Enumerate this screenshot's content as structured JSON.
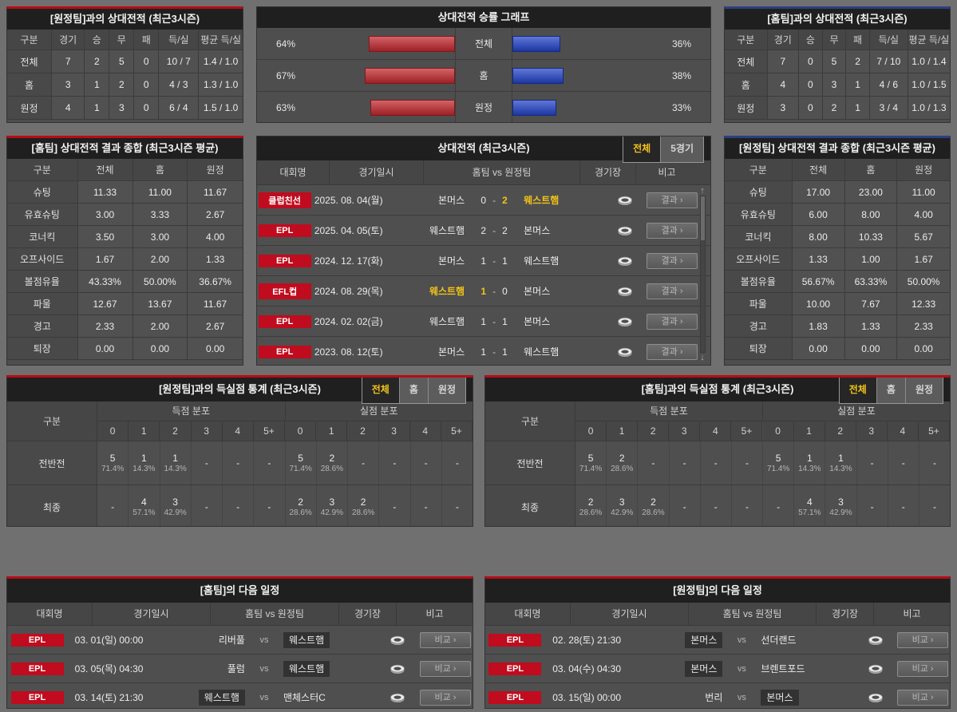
{
  "colors": {
    "accent_red": "#b60d17",
    "accent_blue": "#2a4180",
    "bar_red": "#c0272d",
    "bar_blue": "#2243c7",
    "badge_red": "#c00c1e",
    "highlight_yellow": "#f2c318"
  },
  "ui": {
    "dash": "-",
    "chevron": "›",
    "scroll_up": "↑",
    "scroll_down": "↓"
  },
  "chart_data": {
    "type": "bar",
    "title": "상대전적 승률 그래프",
    "categories": [
      "전체",
      "홈",
      "원정"
    ],
    "series": [
      {
        "name": "홈팀 승률(빨강)",
        "values": [
          64,
          67,
          63
        ]
      },
      {
        "name": "원정팀 승률(파랑)",
        "values": [
          36,
          38,
          33
        ]
      }
    ]
  },
  "panels": {
    "away_record": {
      "title": "[원정팀]과의 상대전적 (최근3시즌)",
      "headers": [
        "구분",
        "경기",
        "승",
        "무",
        "패",
        "득/실",
        "평균 득/실"
      ],
      "rows": [
        {
          "cells": [
            "전체",
            "7",
            "2",
            "5",
            "0",
            "10 / 7",
            "1.4 / 1.0"
          ]
        },
        {
          "cells": [
            "홈",
            "3",
            "1",
            "2",
            "0",
            "4 / 3",
            "1.3 / 1.0"
          ]
        },
        {
          "cells": [
            "원정",
            "4",
            "1",
            "3",
            "0",
            "6 / 4",
            "1.5 / 1.0"
          ]
        }
      ]
    },
    "win_rate_graph": {
      "title": "상대전적 승률 그래프",
      "rows": [
        {
          "label": "전체",
          "left_pct": "64%",
          "left_val": 64,
          "right_pct": "36%",
          "right_val": 36
        },
        {
          "label": "홈",
          "left_pct": "67%",
          "left_val": 67,
          "right_pct": "38%",
          "right_val": 38
        },
        {
          "label": "원정",
          "left_pct": "63%",
          "left_val": 63,
          "right_pct": "33%",
          "right_val": 33
        }
      ]
    },
    "home_record": {
      "title": "[홈팀]과의 상대전적 (최근3시즌)",
      "headers": [
        "구분",
        "경기",
        "승",
        "무",
        "패",
        "득/실",
        "평균 득/실"
      ],
      "rows": [
        {
          "cells": [
            "전체",
            "7",
            "0",
            "5",
            "2",
            "7 / 10",
            "1.0 / 1.4"
          ]
        },
        {
          "cells": [
            "홈",
            "4",
            "0",
            "3",
            "1",
            "4 / 6",
            "1.0 / 1.5"
          ]
        },
        {
          "cells": [
            "원정",
            "3",
            "0",
            "2",
            "1",
            "3 / 4",
            "1.0 / 1.3"
          ]
        }
      ]
    },
    "home_summary": {
      "title": "[홈팀] 상대전적 결과 종합 (최근3시즌 평균)",
      "headers": [
        "구분",
        "전체",
        "홈",
        "원정"
      ],
      "rows": [
        {
          "cells": [
            "슈팅",
            "11.33",
            "11.00",
            "11.67"
          ]
        },
        {
          "cells": [
            "유효슈팅",
            "3.00",
            "3.33",
            "2.67"
          ]
        },
        {
          "cells": [
            "코너킥",
            "3.50",
            "3.00",
            "4.00"
          ]
        },
        {
          "cells": [
            "오프사이드",
            "1.67",
            "2.00",
            "1.33"
          ]
        },
        {
          "cells": [
            "볼점유율",
            "43.33%",
            "50.00%",
            "36.67%"
          ]
        },
        {
          "cells": [
            "파울",
            "12.67",
            "13.67",
            "11.67"
          ]
        },
        {
          "cells": [
            "경고",
            "2.33",
            "2.00",
            "2.67"
          ]
        },
        {
          "cells": [
            "퇴장",
            "0.00",
            "0.00",
            "0.00"
          ]
        }
      ]
    },
    "away_summary": {
      "title": "[원정팀] 상대전적 결과 종합 (최근3시즌 평균)",
      "headers": [
        "구분",
        "전체",
        "홈",
        "원정"
      ],
      "rows": [
        {
          "cells": [
            "슈팅",
            "17.00",
            "23.00",
            "11.00"
          ]
        },
        {
          "cells": [
            "유효슈팅",
            "6.00",
            "8.00",
            "4.00"
          ]
        },
        {
          "cells": [
            "코너킥",
            "8.00",
            "10.33",
            "5.67"
          ]
        },
        {
          "cells": [
            "오프사이드",
            "1.33",
            "1.00",
            "1.67"
          ]
        },
        {
          "cells": [
            "볼점유율",
            "56.67%",
            "63.33%",
            "50.00%"
          ]
        },
        {
          "cells": [
            "파울",
            "10.00",
            "7.67",
            "12.33"
          ]
        },
        {
          "cells": [
            "경고",
            "1.83",
            "1.33",
            "2.33"
          ]
        },
        {
          "cells": [
            "퇴장",
            "0.00",
            "0.00",
            "0.00"
          ]
        }
      ]
    },
    "h2h_matches": {
      "title": "상대전적 (최근3시즌)",
      "tabs": [
        {
          "label": "전체",
          "selected": true
        },
        {
          "label": "5경기",
          "selected": false
        }
      ],
      "headers": {
        "comp": "대회명",
        "date": "경기일시",
        "teams": "홈팀  vs  원정팀",
        "stadium": "경기장",
        "note": "비고"
      },
      "result_label": "결과",
      "rows": [
        {
          "comp": "클럽친선",
          "date": "2025. 08. 04(월)",
          "home": "본머스",
          "hs": "0",
          "as": "2",
          "away": "웨스트햄",
          "home_win": false,
          "away_win": true
        },
        {
          "comp": "EPL",
          "date": "2025. 04. 05(토)",
          "home": "웨스트햄",
          "hs": "2",
          "as": "2",
          "away": "본머스",
          "home_win": false,
          "away_win": false
        },
        {
          "comp": "EPL",
          "date": "2024. 12. 17(화)",
          "home": "본머스",
          "hs": "1",
          "as": "1",
          "away": "웨스트햄",
          "home_win": false,
          "away_win": false
        },
        {
          "comp": "EFL컵",
          "date": "2024. 08. 29(목)",
          "home": "웨스트햄",
          "hs": "1",
          "as": "0",
          "away": "본머스",
          "home_win": true,
          "away_win": false
        },
        {
          "comp": "EPL",
          "date": "2024. 02. 02(금)",
          "home": "웨스트햄",
          "hs": "1",
          "as": "1",
          "away": "본머스",
          "home_win": false,
          "away_win": false
        },
        {
          "comp": "EPL",
          "date": "2023. 08. 12(토)",
          "home": "본머스",
          "hs": "1",
          "as": "1",
          "away": "웨스트햄",
          "home_win": false,
          "away_win": false
        }
      ]
    },
    "dist_subcols": [
      "0",
      "1",
      "2",
      "3",
      "4",
      "5+"
    ],
    "away_dist": {
      "title": "[원정팀]과의 득실점 통계 (최근3시즌)",
      "tabs": [
        {
          "label": "전체",
          "selected": true
        },
        {
          "label": "홈",
          "selected": false
        },
        {
          "label": "원정",
          "selected": false
        }
      ],
      "corner": "구분",
      "group1": "득점 분포",
      "group2": "실점 분포",
      "rows": [
        {
          "label": "전반전",
          "cells": [
            {
              "n": "5",
              "p": "71.4%"
            },
            {
              "n": "1",
              "p": "14.3%"
            },
            {
              "n": "1",
              "p": "14.3%"
            },
            {
              "n": "-",
              "p": ""
            },
            {
              "n": "-",
              "p": ""
            },
            {
              "n": "-",
              "p": ""
            },
            {
              "n": "5",
              "p": "71.4%"
            },
            {
              "n": "2",
              "p": "28.6%"
            },
            {
              "n": "-",
              "p": ""
            },
            {
              "n": "-",
              "p": ""
            },
            {
              "n": "-",
              "p": ""
            },
            {
              "n": "-",
              "p": ""
            }
          ]
        },
        {
          "label": "최종",
          "cells": [
            {
              "n": "-",
              "p": ""
            },
            {
              "n": "4",
              "p": "57.1%"
            },
            {
              "n": "3",
              "p": "42.9%"
            },
            {
              "n": "-",
              "p": ""
            },
            {
              "n": "-",
              "p": ""
            },
            {
              "n": "-",
              "p": ""
            },
            {
              "n": "2",
              "p": "28.6%"
            },
            {
              "n": "3",
              "p": "42.9%"
            },
            {
              "n": "2",
              "p": "28.6%"
            },
            {
              "n": "-",
              "p": ""
            },
            {
              "n": "-",
              "p": ""
            },
            {
              "n": "-",
              "p": ""
            }
          ]
        }
      ]
    },
    "home_dist": {
      "title": "[홈팀]과의 득실점 통계 (최근3시즌)",
      "tabs": [
        {
          "label": "전체",
          "selected": true
        },
        {
          "label": "홈",
          "selected": false
        },
        {
          "label": "원정",
          "selected": false
        }
      ],
      "corner": "구분",
      "group1": "득점 분포",
      "group2": "실점 분포",
      "rows": [
        {
          "label": "전반전",
          "cells": [
            {
              "n": "5",
              "p": "71.4%"
            },
            {
              "n": "2",
              "p": "28.6%"
            },
            {
              "n": "-",
              "p": ""
            },
            {
              "n": "-",
              "p": ""
            },
            {
              "n": "-",
              "p": ""
            },
            {
              "n": "-",
              "p": ""
            },
            {
              "n": "5",
              "p": "71.4%"
            },
            {
              "n": "1",
              "p": "14.3%"
            },
            {
              "n": "1",
              "p": "14.3%"
            },
            {
              "n": "-",
              "p": ""
            },
            {
              "n": "-",
              "p": ""
            },
            {
              "n": "-",
              "p": ""
            }
          ]
        },
        {
          "label": "최종",
          "cells": [
            {
              "n": "2",
              "p": "28.6%"
            },
            {
              "n": "3",
              "p": "42.9%"
            },
            {
              "n": "2",
              "p": "28.6%"
            },
            {
              "n": "-",
              "p": ""
            },
            {
              "n": "-",
              "p": ""
            },
            {
              "n": "-",
              "p": ""
            },
            {
              "n": "-",
              "p": ""
            },
            {
              "n": "4",
              "p": "57.1%"
            },
            {
              "n": "3",
              "p": "42.9%"
            },
            {
              "n": "-",
              "p": ""
            },
            {
              "n": "-",
              "p": ""
            },
            {
              "n": "-",
              "p": ""
            }
          ]
        }
      ]
    },
    "home_schedule": {
      "title": "[홈팀]의 다음 일정",
      "headers": {
        "comp": "대회명",
        "date": "경기일시",
        "teams": "홈팀  vs  원정팀",
        "stadium": "경기장",
        "note": "비고"
      },
      "compare_label": "비교",
      "vs": "vs",
      "rows": [
        {
          "comp": "EPL",
          "date": "03. 01(일) 00:00",
          "home": "리버풀",
          "away": "웨스트햄",
          "home_hl": false,
          "away_hl": true
        },
        {
          "comp": "EPL",
          "date": "03. 05(목) 04:30",
          "home": "풀럼",
          "away": "웨스트햄",
          "home_hl": false,
          "away_hl": true
        },
        {
          "comp": "EPL",
          "date": "03. 14(토) 21:30",
          "home": "웨스트햄",
          "away": "맨체스터C",
          "home_hl": true,
          "away_hl": false
        }
      ]
    },
    "away_schedule": {
      "title": "[원정팀]의 다음 일정",
      "headers": {
        "comp": "대회명",
        "date": "경기일시",
        "teams": "홈팀  vs  원정팀",
        "stadium": "경기장",
        "note": "비고"
      },
      "compare_label": "비교",
      "vs": "vs",
      "rows": [
        {
          "comp": "EPL",
          "date": "02. 28(토) 21:30",
          "home": "본머스",
          "away": "선더랜드",
          "home_hl": true,
          "away_hl": false
        },
        {
          "comp": "EPL",
          "date": "03. 04(수) 04:30",
          "home": "본머스",
          "away": "브렌트포드",
          "home_hl": true,
          "away_hl": false
        },
        {
          "comp": "EPL",
          "date": "03. 15(일) 00:00",
          "home": "번리",
          "away": "본머스",
          "home_hl": false,
          "away_hl": true
        }
      ]
    }
  }
}
